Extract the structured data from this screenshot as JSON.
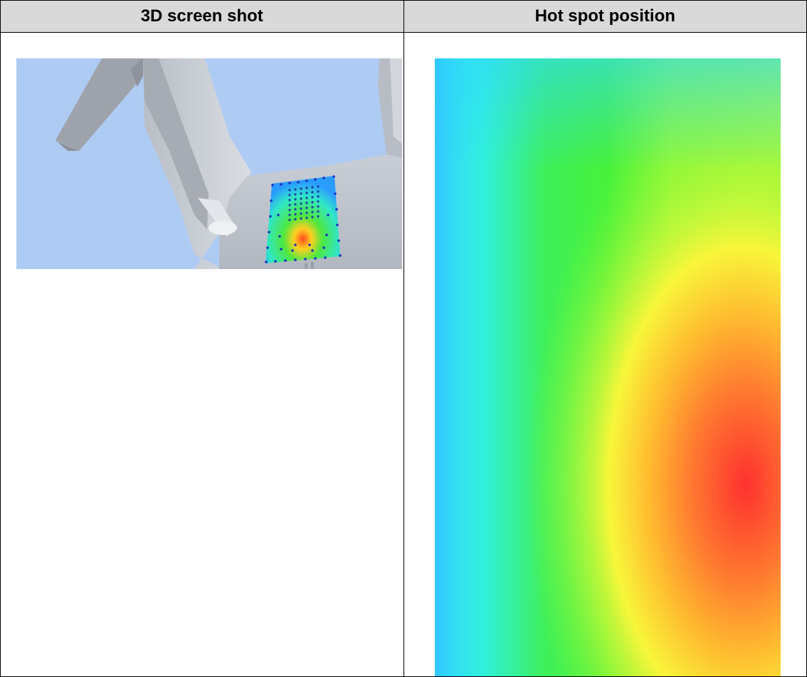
{
  "table": {
    "headers": [
      "3D screen shot",
      "Hot spot position"
    ]
  },
  "images": {
    "screenshot_icon": "3d-render-image",
    "heatmap_icon": "heatmap-image"
  },
  "colors": {
    "header_bg": "#d9d9d9",
    "sky": "#aecbf4",
    "model_grey": "#c5cad3",
    "heat_hot": "#ff3030",
    "heat_cold": "#2ea6ff"
  }
}
